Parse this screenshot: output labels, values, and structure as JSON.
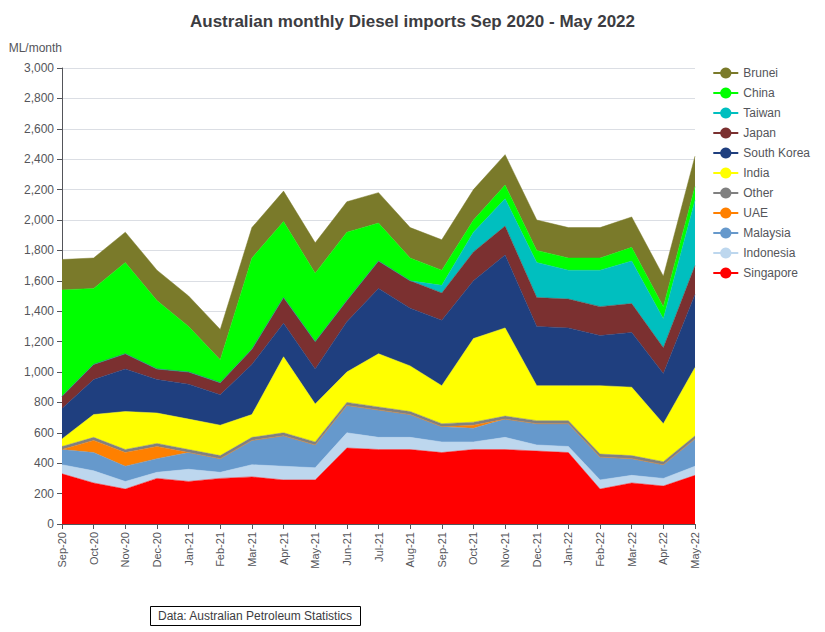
{
  "chart_data": {
    "type": "area",
    "title": "Australian monthly Diesel imports Sep 2020 - May 2022",
    "y_label": "ML/month",
    "annotations": [
      "Data: Australian Petroleum Statistics"
    ],
    "categories": [
      "Sep-20",
      "Oct-20",
      "Nov-20",
      "Dec-20",
      "Jan-21",
      "Feb-21",
      "Mar-21",
      "Apr-21",
      "May-21",
      "Jun-21",
      "Jul-21",
      "Aug-21",
      "Sep-21",
      "Oct-21",
      "Nov-21",
      "Dec-21",
      "Jan-22",
      "Feb-22",
      "Mar-22",
      "Apr-22",
      "May-22"
    ],
    "series": [
      {
        "name": "Singapore",
        "color": "#FF0000",
        "values": [
          330,
          270,
          230,
          300,
          280,
          300,
          310,
          290,
          290,
          500,
          490,
          490,
          470,
          490,
          490,
          480,
          470,
          230,
          270,
          250,
          320
        ]
      },
      {
        "name": "Indonesia",
        "color": "#BDD7EE",
        "values": [
          60,
          80,
          50,
          40,
          80,
          40,
          80,
          90,
          80,
          100,
          80,
          80,
          70,
          50,
          80,
          40,
          40,
          60,
          50,
          50,
          60
        ]
      },
      {
        "name": "Malaysia",
        "color": "#6699CC",
        "values": [
          100,
          120,
          100,
          90,
          110,
          90,
          160,
          200,
          150,
          180,
          180,
          150,
          100,
          90,
          120,
          140,
          150,
          150,
          110,
          90,
          180
        ]
      },
      {
        "name": "UAE",
        "color": "#FF8000",
        "values": [
          0,
          80,
          90,
          80,
          0,
          0,
          0,
          0,
          0,
          0,
          0,
          0,
          0,
          20,
          0,
          0,
          0,
          0,
          0,
          0,
          0
        ]
      },
      {
        "name": "Other",
        "color": "#808080",
        "values": [
          20,
          20,
          20,
          20,
          20,
          20,
          20,
          20,
          20,
          20,
          20,
          20,
          20,
          20,
          20,
          20,
          20,
          20,
          20,
          20,
          20
        ]
      },
      {
        "name": "India",
        "color": "#FFFF00",
        "values": [
          50,
          150,
          250,
          200,
          200,
          200,
          150,
          500,
          250,
          200,
          350,
          300,
          250,
          550,
          580,
          230,
          230,
          450,
          450,
          250,
          450
        ]
      },
      {
        "name": "South Korea",
        "color": "#1F3F7F",
        "values": [
          200,
          230,
          280,
          220,
          230,
          200,
          330,
          220,
          230,
          330,
          430,
          380,
          430,
          380,
          480,
          390,
          380,
          330,
          360,
          330,
          480
        ]
      },
      {
        "name": "Japan",
        "color": "#7B3030",
        "values": [
          80,
          100,
          100,
          70,
          80,
          80,
          100,
          170,
          180,
          140,
          180,
          180,
          180,
          190,
          190,
          190,
          190,
          190,
          190,
          170,
          190
        ]
      },
      {
        "name": "Taiwan",
        "color": "#00BFBF",
        "values": [
          0,
          0,
          0,
          0,
          0,
          0,
          0,
          0,
          0,
          0,
          0,
          0,
          50,
          130,
          180,
          230,
          190,
          240,
          280,
          190,
          430
        ]
      },
      {
        "name": "China",
        "color": "#00FF00",
        "values": [
          700,
          500,
          600,
          450,
          300,
          150,
          600,
          500,
          450,
          450,
          250,
          150,
          100,
          80,
          90,
          80,
          80,
          80,
          90,
          80,
          90
        ]
      },
      {
        "name": "Brunei",
        "color": "#7A7A2A",
        "values": [
          200,
          200,
          200,
          200,
          200,
          200,
          200,
          200,
          200,
          200,
          200,
          200,
          200,
          200,
          200,
          200,
          200,
          200,
          200,
          200,
          200
        ]
      }
    ],
    "stacked": true,
    "ylim": [
      0,
      3000
    ],
    "yticks": [
      0,
      200,
      400,
      600,
      800,
      {
        "value": 1000,
        "label": "1,000"
      },
      {
        "value": 1200,
        "label": "1,200"
      },
      {
        "value": 1400,
        "label": "1,400"
      },
      {
        "value": 1600,
        "label": "1,600"
      },
      {
        "value": 1800,
        "label": "1,800"
      },
      {
        "value": 2000,
        "label": "2,000"
      },
      {
        "value": 2200,
        "label": "2,200"
      },
      {
        "value": 2400,
        "label": "2,400"
      },
      {
        "value": 2600,
        "label": "2,600"
      },
      {
        "value": 2800,
        "label": "2,800"
      },
      {
        "value": 3000,
        "label": "3,000"
      }
    ],
    "grid": true,
    "legend": "right"
  }
}
